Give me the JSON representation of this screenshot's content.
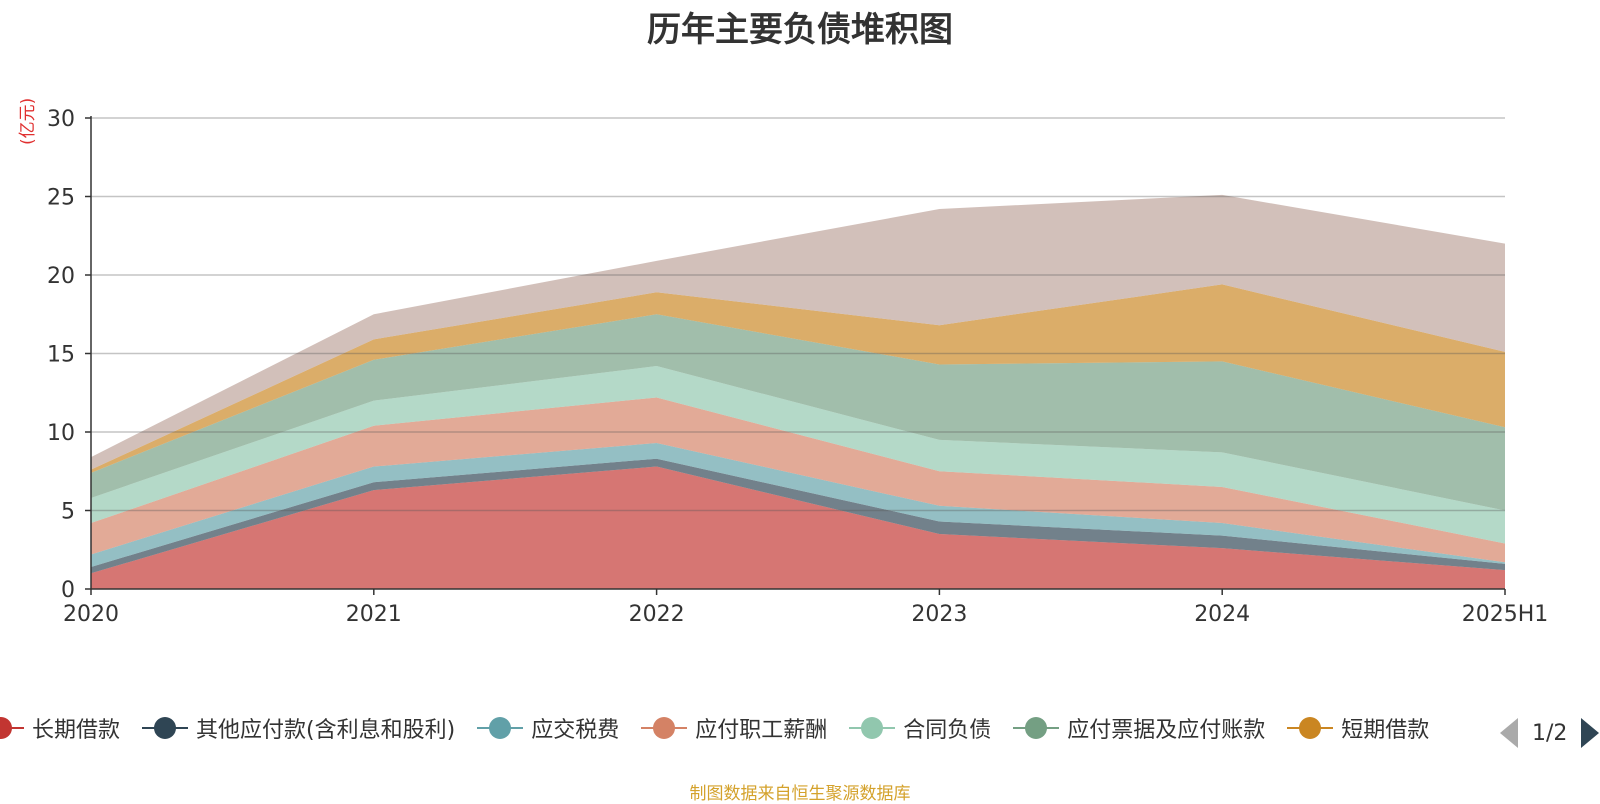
{
  "chart_data": {
    "type": "area",
    "stacked": true,
    "title": "历年主要负债堆积图",
    "unit_label": "(亿元)",
    "source_note": "制图数据来自恒生聚源数据库",
    "categories": [
      "2020",
      "2021",
      "2022",
      "2023",
      "2024",
      "2025H1"
    ],
    "ylim": [
      0,
      30
    ],
    "yticks": [
      "0",
      "5",
      "10",
      "15",
      "20",
      "25",
      "30"
    ],
    "grid": true,
    "legend_position": "bottom",
    "legend_page": "1/2",
    "series": [
      {
        "name": "长期借款",
        "color": "#c23531",
        "values": [
          1.0,
          6.3,
          7.8,
          3.5,
          2.6,
          1.2
        ]
      },
      {
        "name": "其他应付款(含利息和股利)",
        "color": "#2f4554",
        "values": [
          0.4,
          0.5,
          0.5,
          0.8,
          0.8,
          0.4
        ]
      },
      {
        "name": "应交税费",
        "color": "#61a0a8",
        "values": [
          0.8,
          1.0,
          1.0,
          1.0,
          0.8,
          0.1
        ]
      },
      {
        "name": "应付职工薪酬",
        "color": "#d48265",
        "values": [
          2.0,
          2.6,
          2.9,
          2.2,
          2.3,
          1.2
        ]
      },
      {
        "name": "合同负债",
        "color": "#91c7ae",
        "values": [
          1.6,
          1.6,
          2.0,
          2.0,
          2.2,
          2.1
        ]
      },
      {
        "name": "应付票据及应付账款",
        "color": "#749f83",
        "values": [
          1.6,
          2.6,
          3.3,
          4.8,
          5.8,
          5.3
        ]
      },
      {
        "name": "短期借款",
        "color": "#ca8622",
        "values": [
          0.2,
          1.3,
          1.4,
          2.5,
          4.9,
          4.8
        ]
      },
      {
        "name": "",
        "color": "#bda29a",
        "values": [
          0.8,
          1.6,
          2.0,
          7.4,
          5.7,
          6.9
        ]
      }
    ]
  }
}
